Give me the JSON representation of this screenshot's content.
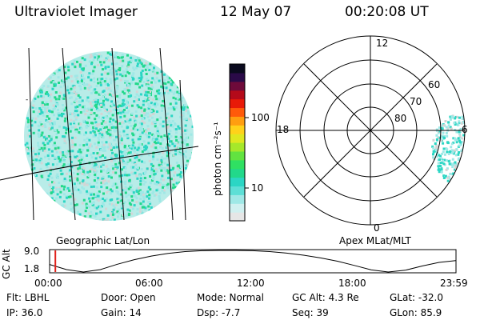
{
  "header": {
    "instrument": "Ultraviolet Imager",
    "date": "12 May 07",
    "time": "00:20:08 UT"
  },
  "colors": {
    "aurora_light": "#9fe8e6",
    "aurora_mid": "#2bd6c4",
    "aurora_green": "#22d88a",
    "gray_speck": "#d4d4d4",
    "grid_line": "#000000"
  },
  "colorbar": {
    "unit_label": "photon cm⁻²s⁻¹",
    "ticks": [
      {
        "label": "100",
        "value": 100
      },
      {
        "label": "10",
        "value": 10
      }
    ],
    "colors_bottom_to_top": [
      "#e6e6e6",
      "#d0f0f0",
      "#9fe8e6",
      "#5ddfd6",
      "#2bd6c4",
      "#22d88a",
      "#2fe062",
      "#62e340",
      "#a6e82a",
      "#dfe820",
      "#ffd21a",
      "#ff9e10",
      "#ff5a0a",
      "#e81a08",
      "#b40a1a",
      "#6e0a3a",
      "#2a0a48",
      "#0a0a1e"
    ]
  },
  "geo_panel": {
    "label": "Geographic Lat/Lon"
  },
  "polar_panel": {
    "label": "Apex MLat/MLT",
    "lat_labels": [
      {
        "text": "80",
        "lat": 80
      },
      {
        "text": "70",
        "lat": 70
      },
      {
        "text": "60",
        "lat": 60
      }
    ],
    "mlt_labels": {
      "top": "12",
      "bottom": "0",
      "left": "18",
      "right": "6"
    }
  },
  "altitude_plot": {
    "ylabel": "GC Alt",
    "yticks": [
      "9.0",
      "1.8"
    ],
    "xticks": [
      "00:00",
      "06:00",
      "12:00",
      "18:00",
      "23:59"
    ],
    "ylim": [
      1.8,
      9.0
    ],
    "x_hours": [
      0,
      1,
      2,
      3,
      4,
      5,
      6,
      7,
      8,
      9,
      10,
      11,
      12,
      13,
      14,
      15,
      16,
      17,
      18,
      19,
      20,
      21,
      22,
      23,
      23.98
    ],
    "alt_re": [
      4.3,
      2.6,
      1.8,
      2.6,
      4.4,
      5.9,
      7.1,
      8.0,
      8.6,
      8.9,
      9.0,
      9.0,
      8.9,
      8.6,
      8.1,
      7.4,
      6.5,
      5.4,
      4.0,
      2.5,
      1.8,
      2.4,
      3.8,
      5.0,
      5.6
    ],
    "current_hour": 0.34
  },
  "info_rows": [
    [
      "Flt: LBHL",
      "Door: Open",
      "Mode: Normal",
      "GC Alt: 4.3 Re",
      "GLat: -32.0"
    ],
    [
      "IP: 36.0",
      "Gain: 14",
      "Dsp:   -7.7",
      "Seq: 39",
      "GLon:  85.9"
    ]
  ]
}
